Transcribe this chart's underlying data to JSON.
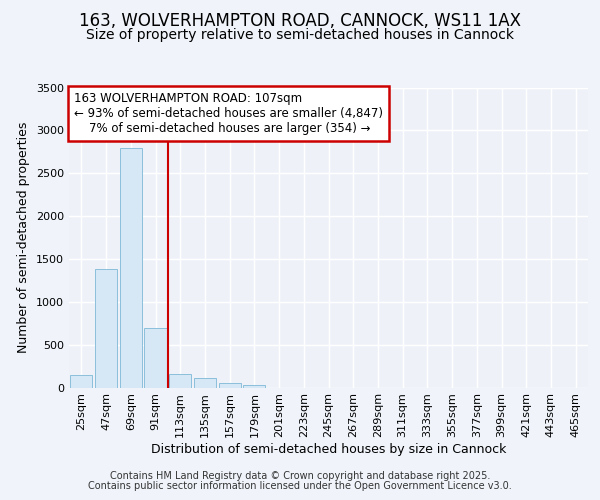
{
  "title1": "163, WOLVERHAMPTON ROAD, CANNOCK, WS11 1AX",
  "title2": "Size of property relative to semi-detached houses in Cannock",
  "xlabel": "Distribution of semi-detached houses by size in Cannock",
  "ylabel": "Number of semi-detached properties",
  "categories": [
    "25sqm",
    "47sqm",
    "69sqm",
    "91sqm",
    "113sqm",
    "135sqm",
    "157sqm",
    "179sqm",
    "201sqm",
    "223sqm",
    "245sqm",
    "267sqm",
    "289sqm",
    "311sqm",
    "333sqm",
    "355sqm",
    "377sqm",
    "399sqm",
    "421sqm",
    "443sqm",
    "465sqm"
  ],
  "values": [
    145,
    1380,
    2790,
    700,
    160,
    110,
    50,
    30,
    0,
    0,
    0,
    0,
    0,
    0,
    0,
    0,
    0,
    0,
    0,
    0,
    0
  ],
  "bar_color": "#d6e8f5",
  "bar_edge_color": "#8bbfda",
  "vline_x": 4.0,
  "vline_color": "#cc0000",
  "annotation_line1": "163 WOLVERHAMPTON ROAD: 107sqm",
  "annotation_line2": "← 93% of semi-detached houses are smaller (4,847)",
  "annotation_line3": "    7% of semi-detached houses are larger (354) →",
  "annotation_box_color": "#cc0000",
  "annotation_fontsize": 8.5,
  "ylim": [
    0,
    3500
  ],
  "yticks": [
    0,
    500,
    1000,
    1500,
    2000,
    2500,
    3000,
    3500
  ],
  "bg_color": "#f0f4fa",
  "plot_bg_color": "#eef2f8",
  "grid_color": "#ffffff",
  "footer1": "Contains HM Land Registry data © Crown copyright and database right 2025.",
  "footer2": "Contains public sector information licensed under the Open Government Licence v3.0.",
  "title_fontsize": 12,
  "subtitle_fontsize": 10,
  "tick_fontsize": 8,
  "ylabel_fontsize": 9,
  "xlabel_fontsize": 9,
  "footer_fontsize": 7
}
